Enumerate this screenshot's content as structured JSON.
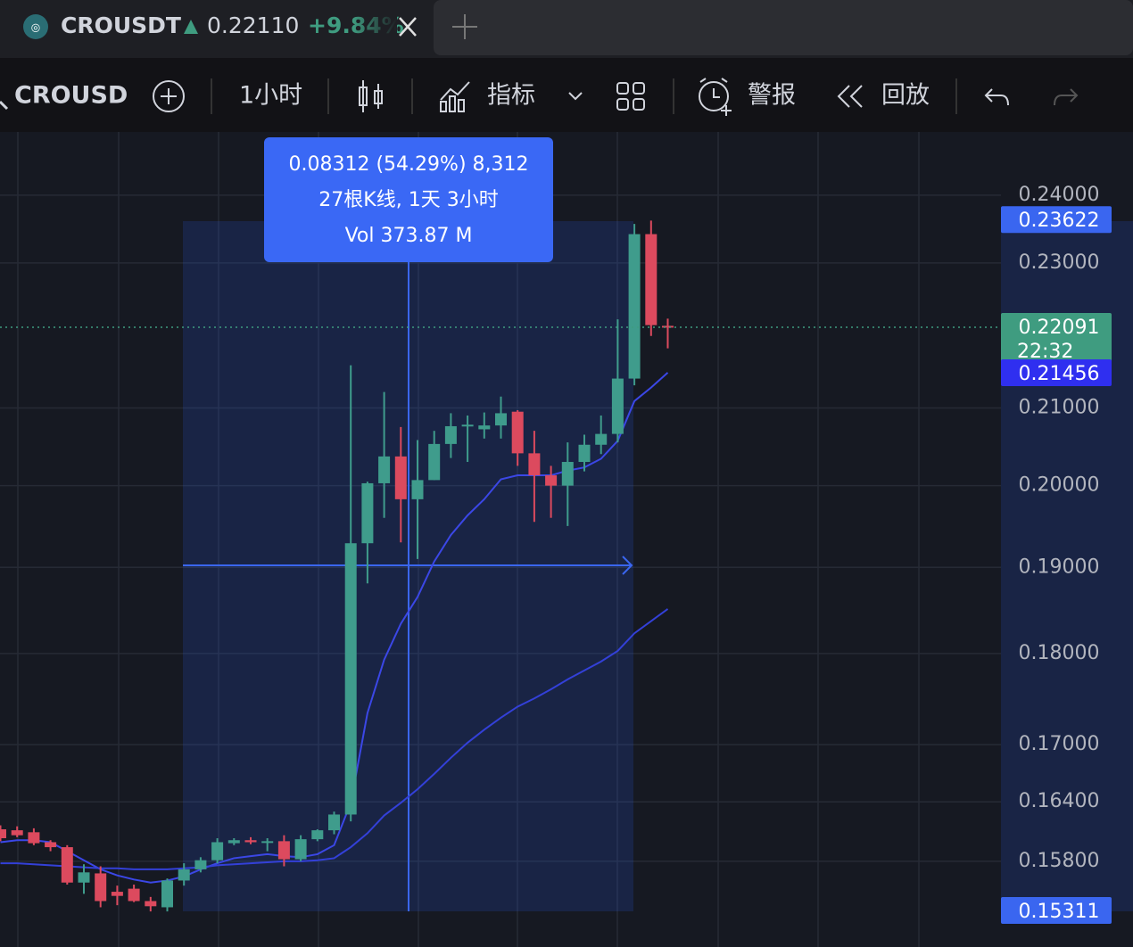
{
  "tab": {
    "symbol": "CROUSDT",
    "price": "0.22110",
    "change": "+9.84%"
  },
  "toolbar": {
    "symbol": "CROUSD",
    "interval": "1小时",
    "indicators": "指标",
    "alerts": "警报",
    "replay": "回放"
  },
  "measure": {
    "line1": "0.08312 (54.29%) 8,312",
    "line2": "27根K线, 1天 3小时",
    "line3": "Vol 373.87 M"
  },
  "chart": {
    "type": "candlestick",
    "log_scale": true,
    "grid": true,
    "up_color": "#3f9c8c",
    "down_color": "#dc4a5e",
    "ylim": [
      0.152,
      0.245
    ],
    "yticks": [
      {
        "value": 0.24,
        "label": "0.24000"
      },
      {
        "value": 0.23,
        "label": "0.23000"
      },
      {
        "value": 0.21,
        "label": "0.21000"
      },
      {
        "value": 0.2,
        "label": "0.20000"
      },
      {
        "value": 0.19,
        "label": "0.19000"
      },
      {
        "value": 0.18,
        "label": "0.18000"
      },
      {
        "value": 0.17,
        "label": "0.17000"
      },
      {
        "value": 0.164,
        "label": "0.16400"
      },
      {
        "value": 0.158,
        "label": "0.15800"
      }
    ],
    "candles": [
      {
        "open": 0.1612,
        "high": 0.1616,
        "low": 0.16,
        "close": 0.1603
      },
      {
        "open": 0.1611,
        "high": 0.1615,
        "low": 0.1604,
        "close": 0.1606
      },
      {
        "open": 0.1609,
        "high": 0.1613,
        "low": 0.1596,
        "close": 0.1598
      },
      {
        "open": 0.1599,
        "high": 0.1601,
        "low": 0.159,
        "close": 0.1594
      },
      {
        "open": 0.1594,
        "high": 0.1596,
        "low": 0.1557,
        "close": 0.1559
      },
      {
        "open": 0.1559,
        "high": 0.1577,
        "low": 0.1548,
        "close": 0.1569
      },
      {
        "open": 0.1568,
        "high": 0.1575,
        "low": 0.1535,
        "close": 0.1541
      },
      {
        "open": 0.155,
        "high": 0.1556,
        "low": 0.1537,
        "close": 0.1546
      },
      {
        "open": 0.1553,
        "high": 0.1557,
        "low": 0.154,
        "close": 0.1541
      },
      {
        "open": 0.1541,
        "high": 0.1545,
        "low": 0.1531,
        "close": 0.1536
      },
      {
        "open": 0.1535,
        "high": 0.1563,
        "low": 0.1531,
        "close": 0.1561
      },
      {
        "open": 0.1561,
        "high": 0.1578,
        "low": 0.1556,
        "close": 0.1572
      },
      {
        "open": 0.1572,
        "high": 0.1584,
        "low": 0.1569,
        "close": 0.1581
      },
      {
        "open": 0.1581,
        "high": 0.1603,
        "low": 0.1578,
        "close": 0.1599
      },
      {
        "open": 0.1598,
        "high": 0.1603,
        "low": 0.1596,
        "close": 0.1601
      },
      {
        "open": 0.1601,
        "high": 0.1604,
        "low": 0.1597,
        "close": 0.1599
      },
      {
        "open": 0.1599,
        "high": 0.1603,
        "low": 0.159,
        "close": 0.16
      },
      {
        "open": 0.16,
        "high": 0.1606,
        "low": 0.1575,
        "close": 0.1582
      },
      {
        "open": 0.1582,
        "high": 0.1606,
        "low": 0.158,
        "close": 0.1602
      },
      {
        "open": 0.1602,
        "high": 0.1612,
        "low": 0.16,
        "close": 0.1611
      },
      {
        "open": 0.1611,
        "high": 0.163,
        "low": 0.1607,
        "close": 0.1627
      },
      {
        "open": 0.1627,
        "high": 0.2157,
        "low": 0.162,
        "close": 0.1929
      },
      {
        "open": 0.1929,
        "high": 0.2005,
        "low": 0.1881,
        "close": 0.2003
      },
      {
        "open": 0.2003,
        "high": 0.2121,
        "low": 0.196,
        "close": 0.2037
      },
      {
        "open": 0.2037,
        "high": 0.2075,
        "low": 0.193,
        "close": 0.1983
      },
      {
        "open": 0.1983,
        "high": 0.2058,
        "low": 0.191,
        "close": 0.2007
      },
      {
        "open": 0.2007,
        "high": 0.207,
        "low": 0.2007,
        "close": 0.2053
      },
      {
        "open": 0.2053,
        "high": 0.2093,
        "low": 0.2035,
        "close": 0.2076
      },
      {
        "open": 0.2076,
        "high": 0.209,
        "low": 0.203,
        "close": 0.2078
      },
      {
        "open": 0.2072,
        "high": 0.2094,
        "low": 0.206,
        "close": 0.2077
      },
      {
        "open": 0.2077,
        "high": 0.2115,
        "low": 0.206,
        "close": 0.2093
      },
      {
        "open": 0.2095,
        "high": 0.2097,
        "low": 0.2025,
        "close": 0.2041
      },
      {
        "open": 0.2041,
        "high": 0.207,
        "low": 0.1955,
        "close": 0.2013
      },
      {
        "open": 0.2013,
        "high": 0.2025,
        "low": 0.196,
        "close": 0.2
      },
      {
        "open": 0.2,
        "high": 0.2055,
        "low": 0.195,
        "close": 0.203
      },
      {
        "open": 0.203,
        "high": 0.2065,
        "low": 0.2018,
        "close": 0.2052
      },
      {
        "open": 0.2052,
        "high": 0.209,
        "low": 0.204,
        "close": 0.2066
      },
      {
        "open": 0.2066,
        "high": 0.222,
        "low": 0.2055,
        "close": 0.2139
      },
      {
        "open": 0.2139,
        "high": 0.2357,
        "low": 0.213,
        "close": 0.2342
      },
      {
        "open": 0.2342,
        "high": 0.2362,
        "low": 0.2197,
        "close": 0.2212
      },
      {
        "open": 0.2211,
        "high": 0.2221,
        "low": 0.218,
        "close": 0.2209
      }
    ],
    "ma_lines": [
      {
        "color": "#3b47e6",
        "values": [
          0.1599,
          0.1601,
          0.1601,
          0.1599,
          0.159,
          0.1581,
          0.1572,
          0.1566,
          0.1562,
          0.1559,
          0.1561,
          0.1565,
          0.1572,
          0.1578,
          0.1583,
          0.1585,
          0.1587,
          0.1585,
          0.1584,
          0.1587,
          0.1596,
          0.1639,
          0.1734,
          0.1793,
          0.1834,
          0.1865,
          0.1907,
          0.1939,
          0.1963,
          0.1983,
          0.2008,
          0.2013,
          0.2013,
          0.2013,
          0.2019,
          0.2023,
          0.2034,
          0.2057,
          0.2109,
          0.2127,
          0.2147
        ]
      },
      {
        "color": "#3340d8",
        "values": [
          0.1578,
          0.1578,
          0.1577,
          0.1576,
          0.1575,
          0.1574,
          0.1573,
          0.1573,
          0.1572,
          0.1572,
          0.1572,
          0.1573,
          0.1574,
          0.1576,
          0.1577,
          0.1578,
          0.1579,
          0.158,
          0.158,
          0.1581,
          0.1583,
          0.1594,
          0.1608,
          0.1626,
          0.1639,
          0.1653,
          0.1669,
          0.1686,
          0.1702,
          0.1716,
          0.1729,
          0.1741,
          0.175,
          0.176,
          0.1771,
          0.1781,
          0.1791,
          0.1803,
          0.1823,
          0.1837,
          0.1851
        ]
      }
    ],
    "price_badges": [
      {
        "value": 0.23622,
        "color": "#3a66f0"
      },
      {
        "value": 0.22091,
        "color": "#3f9c80",
        "countdown": "22:32"
      },
      {
        "value": 0.21456,
        "color": "#2f2ff0"
      },
      {
        "value": 0.15311,
        "color": "#3a66f0"
      }
    ]
  }
}
